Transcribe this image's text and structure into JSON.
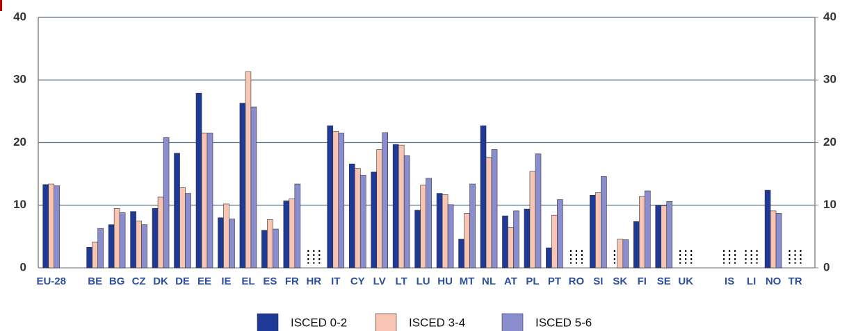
{
  "chart_data": {
    "type": "bar",
    "categories": [
      "EU-28",
      null,
      "BE",
      "BG",
      "CZ",
      "DK",
      "DE",
      "EE",
      "IE",
      "EL",
      "ES",
      "FR",
      "HR",
      "IT",
      "CY",
      "LV",
      "LT",
      "LU",
      "HU",
      "MT",
      "NL",
      "AT",
      "PL",
      "PT",
      "RO",
      "SI",
      "SK",
      "FI",
      "SE",
      "UK",
      null,
      "IS",
      "LI",
      "NO",
      "TR"
    ],
    "series": [
      {
        "name": "ISCED 0-2",
        "color": "#1f3a96",
        "values": [
          13.3,
          null,
          3.3,
          6.9,
          9.0,
          9.5,
          18.3,
          27.9,
          8.0,
          26.3,
          6.0,
          10.7,
          null,
          22.7,
          16.6,
          15.3,
          19.7,
          9.2,
          11.9,
          4.6,
          22.7,
          8.3,
          9.4,
          3.2,
          null,
          11.6,
          null,
          7.4,
          10.0,
          null,
          null,
          null,
          null,
          12.4,
          null
        ]
      },
      {
        "name": "ISCED 3-4",
        "color": "#f8c4b4",
        "values": [
          13.4,
          null,
          4.1,
          9.5,
          7.5,
          11.3,
          12.8,
          21.5,
          10.2,
          31.3,
          7.7,
          11.0,
          null,
          21.8,
          15.9,
          18.9,
          19.6,
          13.2,
          11.7,
          8.7,
          17.7,
          6.5,
          15.4,
          8.4,
          null,
          12.0,
          4.6,
          11.4,
          9.9,
          null,
          null,
          null,
          null,
          9.1,
          null
        ]
      },
      {
        "name": "ISCED 5-6",
        "color": "#8a8ecf",
        "values": [
          13.1,
          null,
          6.3,
          8.8,
          6.9,
          20.8,
          11.9,
          21.5,
          7.8,
          25.7,
          6.2,
          13.4,
          null,
          21.5,
          14.8,
          21.6,
          17.9,
          14.3,
          10.1,
          13.4,
          18.9,
          9.1,
          18.2,
          10.9,
          null,
          14.6,
          4.5,
          12.3,
          10.6,
          null,
          null,
          null,
          null,
          8.7,
          null
        ]
      }
    ],
    "ylim": [
      0,
      40
    ],
    "yticks": [
      0,
      10,
      20,
      30,
      40
    ],
    "y2lim": [
      0,
      40
    ],
    "y2ticks": [
      0,
      10,
      20,
      30,
      40
    ],
    "grid": true,
    "legend": "bottom"
  }
}
